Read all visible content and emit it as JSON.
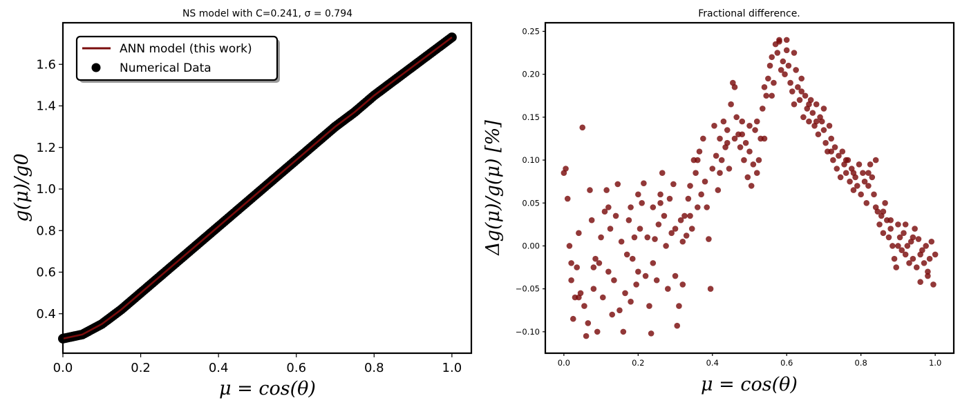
{
  "chart_data": [
    {
      "type": "line",
      "title": "NS model with C=0.241, σ = 0.794",
      "xlabel": "μ = cos(θ)",
      "ylabel": "g(μ)/g0",
      "xlim": [
        0.0,
        1.05
      ],
      "ylim": [
        0.21,
        1.8
      ],
      "xticks": [
        "0.0",
        "0.2",
        "0.4",
        "0.6",
        "0.8",
        "1.0"
      ],
      "yticks": [
        "0.4",
        "0.6",
        "0.8",
        "1.0",
        "1.2",
        "1.4",
        "1.6"
      ],
      "grid": false,
      "legend": "top-left",
      "colors": {
        "line": "#7a0c0c",
        "points": "#000000"
      },
      "series": [
        {
          "name": "ANN model (this work)",
          "kind": "line",
          "x": [
            0.0,
            0.05,
            0.1,
            0.15,
            0.2,
            0.25,
            0.3,
            0.35,
            0.4,
            0.45,
            0.5,
            0.55,
            0.6,
            0.65,
            0.7,
            0.75,
            0.8,
            0.85,
            0.9,
            0.95,
            1.0
          ],
          "y": [
            0.28,
            0.3,
            0.35,
            0.42,
            0.5,
            0.58,
            0.66,
            0.74,
            0.82,
            0.9,
            0.98,
            1.06,
            1.14,
            1.22,
            1.3,
            1.37,
            1.45,
            1.52,
            1.59,
            1.66,
            1.73
          ]
        },
        {
          "name": "Numerical Data",
          "kind": "scatter",
          "x": [
            0.0,
            0.05,
            0.1,
            0.15,
            0.2,
            0.25,
            0.3,
            0.35,
            0.4,
            0.45,
            0.5,
            0.55,
            0.6,
            0.65,
            0.7,
            0.75,
            0.8,
            0.85,
            0.9,
            0.95,
            1.0
          ],
          "y": [
            0.28,
            0.3,
            0.35,
            0.42,
            0.5,
            0.58,
            0.66,
            0.74,
            0.82,
            0.9,
            0.98,
            1.06,
            1.14,
            1.22,
            1.3,
            1.37,
            1.45,
            1.52,
            1.59,
            1.66,
            1.73
          ]
        }
      ]
    },
    {
      "type": "scatter",
      "title": "Fractional difference.",
      "xlabel": "μ = cos(θ)",
      "ylabel": "Δg(μ)/g(μ)  [%]",
      "xlim": [
        -0.05,
        1.05
      ],
      "ylim": [
        -0.125,
        0.26
      ],
      "xticks": [
        "0.0",
        "0.2",
        "0.4",
        "0.6",
        "0.8",
        "1.0"
      ],
      "yticks": [
        "−0.10",
        "−0.05",
        "0.00",
        "0.05",
        "0.10",
        "0.15",
        "0.20",
        "0.25"
      ],
      "grid": false,
      "colors": {
        "points": "#7a0c0c"
      },
      "points": [
        [
          0.0,
          0.085
        ],
        [
          0.005,
          0.09
        ],
        [
          0.01,
          0.055
        ],
        [
          0.015,
          0.0
        ],
        [
          0.02,
          -0.04
        ],
        [
          0.025,
          -0.085
        ],
        [
          0.03,
          -0.06
        ],
        [
          0.035,
          -0.025
        ],
        [
          0.04,
          0.015
        ],
        [
          0.045,
          -0.055
        ],
        [
          0.05,
          0.138
        ],
        [
          0.055,
          -0.07
        ],
        [
          0.06,
          -0.105
        ],
        [
          0.065,
          -0.09
        ],
        [
          0.07,
          0.065
        ],
        [
          0.075,
          0.03
        ],
        [
          0.08,
          -0.05
        ],
        [
          0.085,
          -0.015
        ],
        [
          0.09,
          -0.1
        ],
        [
          0.095,
          -0.02
        ],
        [
          0.1,
          0.01
        ],
        [
          0.105,
          -0.06
        ],
        [
          0.11,
          0.04
        ],
        [
          0.115,
          0.065
        ],
        [
          0.12,
          -0.03
        ],
        [
          0.125,
          0.02
        ],
        [
          0.13,
          -0.08
        ],
        [
          0.135,
          -0.04
        ],
        [
          0.14,
          0.035
        ],
        [
          0.145,
          0.072
        ],
        [
          0.15,
          -0.075
        ],
        [
          0.155,
          0.005
        ],
        [
          0.16,
          -0.1
        ],
        [
          0.165,
          -0.055
        ],
        [
          0.17,
          -0.01
        ],
        [
          0.175,
          0.03
        ],
        [
          0.18,
          -0.065
        ],
        [
          0.185,
          -0.015
        ],
        [
          0.19,
          0.01
        ],
        [
          0.195,
          -0.045
        ],
        [
          0.2,
          -0.03
        ],
        [
          0.205,
          0.02
        ],
        [
          0.21,
          0.05
        ],
        [
          0.215,
          0.073
        ],
        [
          0.22,
          -0.035
        ],
        [
          0.225,
          0.01
        ],
        [
          0.23,
          -0.07
        ],
        [
          0.235,
          -0.102
        ],
        [
          0.24,
          -0.02
        ],
        [
          0.245,
          0.008
        ],
        [
          0.25,
          -0.04
        ],
        [
          0.255,
          0.025
        ],
        [
          0.26,
          0.06
        ],
        [
          0.265,
          0.085
        ],
        [
          0.27,
          0.035
        ],
        [
          0.275,
          0.0
        ],
        [
          0.28,
          -0.05
        ],
        [
          0.285,
          0.055
        ],
        [
          0.29,
          0.015
        ],
        [
          0.295,
          0.072
        ],
        [
          0.3,
          -0.035
        ],
        [
          0.305,
          -0.093
        ],
        [
          0.31,
          -0.07
        ],
        [
          0.315,
          0.03
        ],
        [
          0.32,
          0.005
        ],
        [
          0.325,
          0.035
        ],
        [
          0.33,
          0.012
        ],
        [
          0.335,
          0.055
        ],
        [
          0.34,
          0.07
        ],
        [
          0.345,
          0.02
        ],
        [
          0.35,
          0.1
        ],
        [
          0.355,
          0.085
        ],
        [
          0.36,
          0.045
        ],
        [
          0.365,
          0.11
        ],
        [
          0.37,
          0.06
        ],
        [
          0.375,
          0.125
        ],
        [
          0.38,
          0.075
        ],
        [
          0.385,
          0.045
        ],
        [
          0.39,
          0.008
        ],
        [
          0.395,
          -0.05
        ],
        [
          0.4,
          0.09
        ],
        [
          0.405,
          0.14
        ],
        [
          0.41,
          0.105
        ],
        [
          0.415,
          0.065
        ],
        [
          0.42,
          0.125
        ],
        [
          0.425,
          0.1
        ],
        [
          0.43,
          0.145
        ],
        [
          0.435,
          0.115
        ],
        [
          0.44,
          0.135
        ],
        [
          0.445,
          0.09
        ],
        [
          0.45,
          0.165
        ],
        [
          0.455,
          0.19
        ],
        [
          0.46,
          0.125
        ],
        [
          0.465,
          0.15
        ],
        [
          0.47,
          0.13
        ],
        [
          0.475,
          0.115
        ],
        [
          0.48,
          0.145
        ],
        [
          0.485,
          0.1
        ],
        [
          0.49,
          0.12
        ],
        [
          0.495,
          0.08
        ],
        [
          0.5,
          0.11
        ],
        [
          0.505,
          0.07
        ],
        [
          0.51,
          0.095
        ],
        [
          0.515,
          0.135
        ],
        [
          0.52,
          0.145
        ],
        [
          0.525,
          0.1
        ],
        [
          0.53,
          0.125
        ],
        [
          0.535,
          0.16
        ],
        [
          0.54,
          0.185
        ],
        [
          0.545,
          0.175
        ],
        [
          0.55,
          0.195
        ],
        [
          0.555,
          0.21
        ],
        [
          0.56,
          0.22
        ],
        [
          0.565,
          0.19
        ],
        [
          0.57,
          0.235
        ],
        [
          0.575,
          0.225
        ],
        [
          0.58,
          0.24
        ],
        [
          0.585,
          0.205
        ],
        [
          0.59,
          0.215
        ],
        [
          0.595,
          0.2
        ],
        [
          0.6,
          0.228
        ],
        [
          0.605,
          0.21
        ],
        [
          0.61,
          0.19
        ],
        [
          0.615,
          0.18
        ],
        [
          0.62,
          0.165
        ],
        [
          0.625,
          0.205
        ],
        [
          0.63,
          0.185
        ],
        [
          0.635,
          0.17
        ],
        [
          0.64,
          0.195
        ],
        [
          0.645,
          0.15
        ],
        [
          0.65,
          0.175
        ],
        [
          0.655,
          0.16
        ],
        [
          0.66,
          0.145
        ],
        [
          0.665,
          0.17
        ],
        [
          0.67,
          0.155
        ],
        [
          0.675,
          0.14
        ],
        [
          0.68,
          0.165
        ],
        [
          0.685,
          0.13
        ],
        [
          0.69,
          0.15
        ],
        [
          0.695,
          0.145
        ],
        [
          0.7,
          0.135
        ],
        [
          0.705,
          0.12
        ],
        [
          0.71,
          0.11
        ],
        [
          0.715,
          0.14
        ],
        [
          0.72,
          0.125
        ],
        [
          0.725,
          0.1
        ],
        [
          0.73,
          0.115
        ],
        [
          0.735,
          0.09
        ],
        [
          0.74,
          0.105
        ],
        [
          0.745,
          0.08
        ],
        [
          0.75,
          0.11
        ],
        [
          0.755,
          0.095
        ],
        [
          0.76,
          0.085
        ],
        [
          0.765,
          0.1
        ],
        [
          0.77,
          0.075
        ],
        [
          0.775,
          0.09
        ],
        [
          0.78,
          0.065
        ],
        [
          0.785,
          0.08
        ],
        [
          0.79,
          0.07
        ],
        [
          0.795,
          0.095
        ],
        [
          0.8,
          0.06
        ],
        [
          0.805,
          0.085
        ],
        [
          0.81,
          0.075
        ],
        [
          0.815,
          0.05
        ],
        [
          0.82,
          0.07
        ],
        [
          0.825,
          0.095
        ],
        [
          0.83,
          0.08
        ],
        [
          0.835,
          0.06
        ],
        [
          0.84,
          0.045
        ],
        [
          0.845,
          0.04
        ],
        [
          0.85,
          0.025
        ],
        [
          0.855,
          0.035
        ],
        [
          0.86,
          0.015
        ],
        [
          0.865,
          0.05
        ],
        [
          0.87,
          0.03
        ],
        [
          0.875,
          0.01
        ],
        [
          0.88,
          0.02
        ],
        [
          0.885,
          0.0
        ],
        [
          0.89,
          -0.015
        ],
        [
          0.895,
          -0.025
        ],
        [
          0.9,
          0.025
        ],
        [
          0.905,
          0.01
        ],
        [
          0.91,
          -0.005
        ],
        [
          0.915,
          0.015
        ],
        [
          0.92,
          -0.01
        ],
        [
          0.925,
          0.0
        ],
        [
          0.93,
          -0.02
        ],
        [
          0.935,
          0.005
        ],
        [
          0.94,
          -0.015
        ],
        [
          0.945,
          0.02
        ],
        [
          0.95,
          -0.025
        ],
        [
          0.955,
          0.008
        ],
        [
          0.96,
          -0.042
        ],
        [
          0.965,
          -0.005
        ],
        [
          0.97,
          -0.02
        ],
        [
          0.975,
          0.0
        ],
        [
          0.98,
          -0.03
        ],
        [
          0.985,
          -0.015
        ],
        [
          0.99,
          0.005
        ],
        [
          0.995,
          -0.045
        ],
        [
          0.5,
          0.14
        ],
        [
          0.58,
          0.238
        ],
        [
          0.62,
          0.225
        ],
        [
          0.66,
          0.165
        ],
        [
          0.6,
          0.24
        ],
        [
          0.46,
          0.185
        ],
        [
          0.56,
          0.175
        ],
        [
          0.44,
          0.12
        ],
        [
          0.36,
          0.1
        ],
        [
          0.3,
          0.02
        ],
        [
          0.24,
          0.045
        ],
        [
          0.2,
          0.06
        ],
        [
          0.18,
          0.045
        ],
        [
          0.12,
          0.045
        ],
        [
          0.08,
          -0.025
        ],
        [
          0.02,
          -0.02
        ],
        [
          0.04,
          -0.06
        ],
        [
          0.26,
          0.05
        ],
        [
          0.32,
          -0.045
        ],
        [
          0.34,
          0.035
        ],
        [
          0.42,
          0.085
        ],
        [
          0.48,
          0.13
        ],
        [
          0.52,
          0.085
        ],
        [
          0.54,
          0.125
        ],
        [
          0.64,
          0.18
        ],
        [
          0.68,
          0.145
        ],
        [
          0.7,
          0.16
        ],
        [
          0.72,
          0.11
        ],
        [
          0.76,
          0.1
        ],
        [
          0.78,
          0.085
        ],
        [
          0.82,
          0.085
        ],
        [
          0.84,
          0.1
        ],
        [
          0.86,
          0.04
        ],
        [
          0.88,
          0.03
        ],
        [
          0.9,
          0.0
        ],
        [
          0.92,
          0.025
        ],
        [
          0.94,
          0.01
        ],
        [
          0.96,
          -0.01
        ],
        [
          0.98,
          -0.035
        ],
        [
          1.0,
          -0.01
        ]
      ]
    }
  ]
}
